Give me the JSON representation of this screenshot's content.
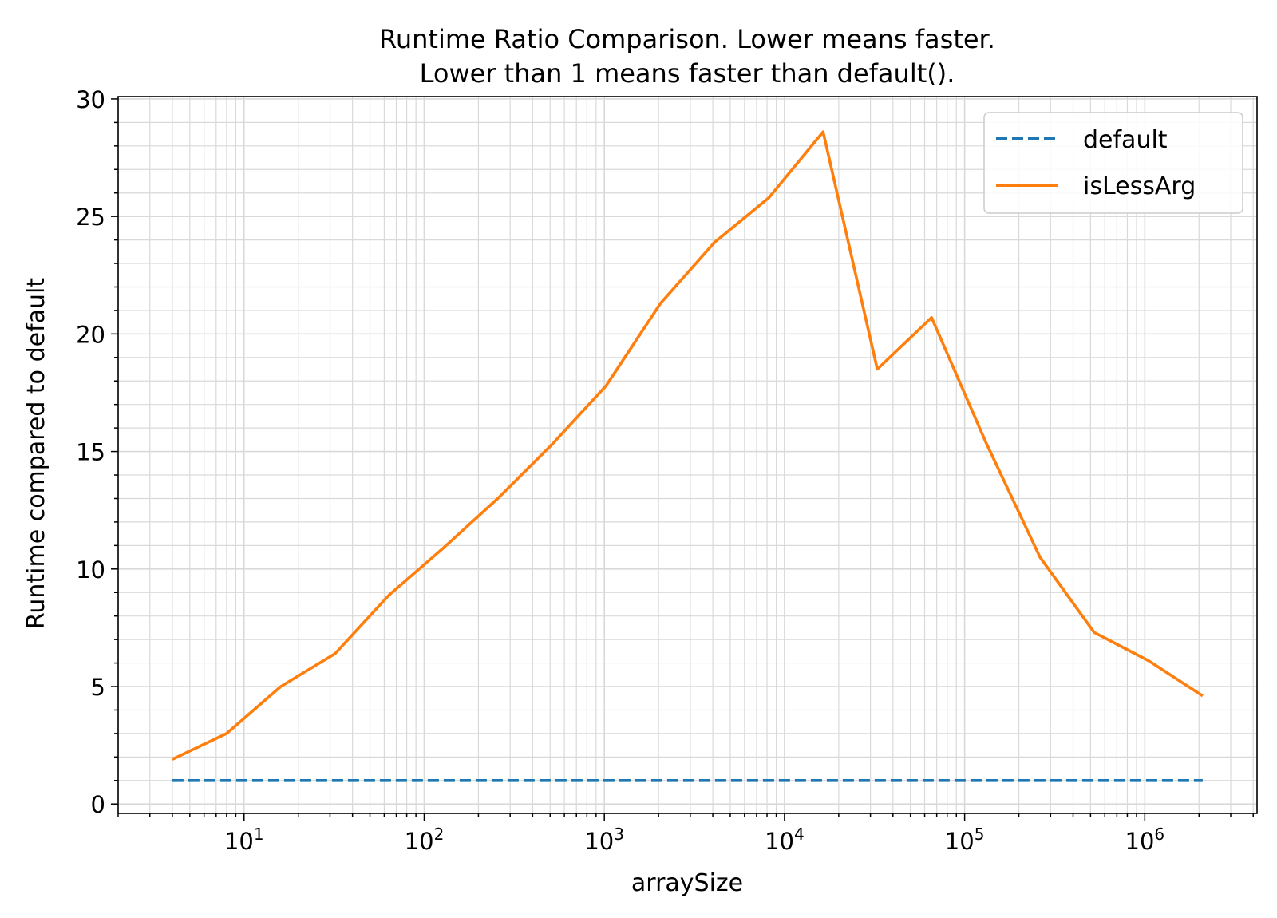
{
  "chart_data": {
    "type": "line",
    "title_lines": [
      "Runtime Ratio Comparison. Lower means faster.",
      "Lower than 1 means faster than default()."
    ],
    "xlabel": "arraySize",
    "ylabel": "Runtime compared to default",
    "xscale": "log",
    "xlim": [
      2,
      4200000
    ],
    "ylim": [
      -0.4,
      30.1
    ],
    "x_ticks": [
      {
        "base": "10",
        "exp": "1"
      },
      {
        "base": "10",
        "exp": "2"
      },
      {
        "base": "10",
        "exp": "3"
      },
      {
        "base": "10",
        "exp": "4"
      },
      {
        "base": "10",
        "exp": "5"
      },
      {
        "base": "10",
        "exp": "6"
      }
    ],
    "y_ticks": [
      "0",
      "5",
      "10",
      "15",
      "20",
      "25",
      "30"
    ],
    "grid": true,
    "legend_position": "top-right",
    "x": [
      4,
      8,
      16,
      32,
      64,
      128,
      256,
      512,
      1024,
      2048,
      4096,
      8192,
      16384,
      32768,
      65536,
      131072,
      262144,
      524288,
      1048576,
      2097152
    ],
    "series": [
      {
        "name": "default",
        "color": "#1f77b4",
        "style": "dashed",
        "values": [
          1,
          1,
          1,
          1,
          1,
          1,
          1,
          1,
          1,
          1,
          1,
          1,
          1,
          1,
          1,
          1,
          1,
          1,
          1,
          1
        ]
      },
      {
        "name": "isLessArg",
        "color": "#ff7f0e",
        "style": "solid",
        "values": [
          1.9,
          3.0,
          5.0,
          6.4,
          8.9,
          10.9,
          13.0,
          15.3,
          17.8,
          21.3,
          23.9,
          25.8,
          28.6,
          18.5,
          20.7,
          15.4,
          10.5,
          7.3,
          6.1,
          4.6
        ]
      }
    ]
  }
}
